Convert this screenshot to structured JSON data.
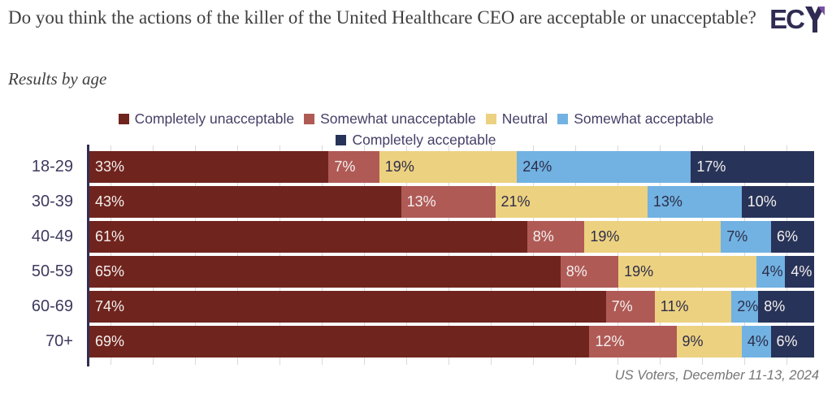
{
  "header": {
    "title": "Do you think the actions of the killer of the United Healthcare CEO are acceptable or unacceptable?",
    "subtitle": "Results by age",
    "logo": {
      "text": "EC",
      "mark": "stylized-P",
      "dark_color": "#2f2b52",
      "accent_color": "#7c4fa4"
    }
  },
  "chart_data": {
    "type": "bar",
    "stacked": true,
    "orientation": "horizontal",
    "normalized_percent": true,
    "grid": true,
    "legend_position": "top",
    "title": "Do you think the actions of the killer of the United Healthcare CEO are acceptable or unacceptable?",
    "subtitle": "Results by age",
    "categories": [
      "18-29",
      "30-39",
      "40-49",
      "50-59",
      "60-69",
      "70+"
    ],
    "series": [
      {
        "name": "Completely unacceptable",
        "color": "#70241e",
        "label_style": "light",
        "values": [
          33,
          43,
          61,
          65,
          74,
          69
        ]
      },
      {
        "name": "Somewhat unacceptable",
        "color": "#b05a56",
        "label_style": "light",
        "values": [
          7,
          13,
          8,
          8,
          7,
          12
        ]
      },
      {
        "name": "Neutral",
        "color": "#ecd180",
        "label_style": "dark",
        "values": [
          19,
          21,
          19,
          19,
          11,
          9
        ]
      },
      {
        "name": "Somewhat acceptable",
        "color": "#71b2e2",
        "label_style": "dark",
        "values": [
          24,
          13,
          7,
          4,
          2,
          4
        ]
      },
      {
        "name": "Completely acceptable",
        "color": "#283359",
        "label_style": "light",
        "values": [
          17,
          10,
          6,
          4,
          8,
          6
        ]
      }
    ],
    "value_suffix": "%",
    "legend_rows": [
      [
        0,
        1,
        2,
        3
      ],
      [
        4
      ]
    ],
    "label_text_colors": {
      "light": "#f3f0ee",
      "dark": "#2d2d49"
    }
  },
  "footer": {
    "source": "US Voters, December 11-13, 2024"
  }
}
